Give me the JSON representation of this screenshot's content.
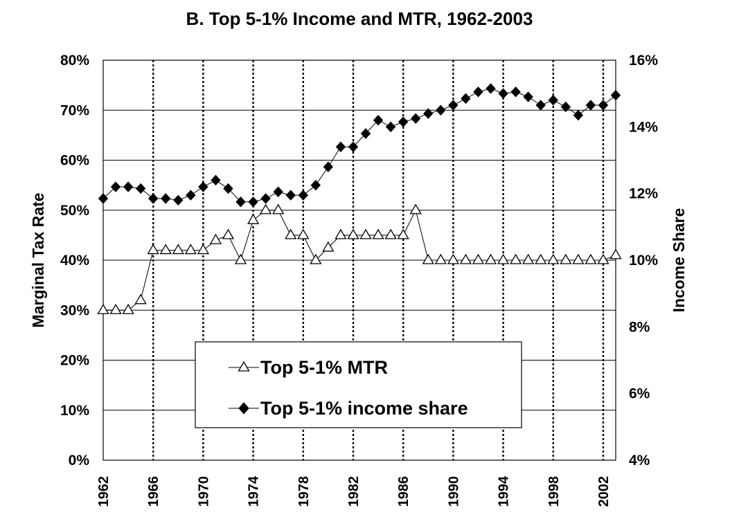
{
  "chart_data": {
    "type": "line",
    "title": "B. Top 5-1% Income and MTR, 1962-2003",
    "ylabel_left": "Marginal Tax Rate",
    "ylabel_right": "Income Share",
    "ylim_left": [
      0,
      80
    ],
    "ylim_right": [
      4,
      16
    ],
    "xlim": [
      1962,
      2003
    ],
    "x_ticks": [
      1962,
      1966,
      1970,
      1974,
      1978,
      1982,
      1986,
      1990,
      1994,
      1998,
      2002
    ],
    "x_tick_labels": [
      "1962",
      "1966",
      "1970",
      "1974",
      "1978",
      "1982",
      "1986",
      "1990",
      "1994",
      "1998",
      "2002"
    ],
    "y_left_ticks": [
      "0%",
      "10%",
      "20%",
      "30%",
      "40%",
      "50%",
      "60%",
      "70%",
      "80%"
    ],
    "y_right_ticks": [
      "4%",
      "6%",
      "8%",
      "10%",
      "12%",
      "14%",
      "16%"
    ],
    "grid": "horizontal solid lines; vertical dotted lines at x ticks",
    "legend_position": "lower-center",
    "x": [
      1962,
      1963,
      1964,
      1965,
      1966,
      1967,
      1968,
      1969,
      1970,
      1971,
      1972,
      1973,
      1974,
      1975,
      1976,
      1977,
      1978,
      1979,
      1980,
      1981,
      1982,
      1983,
      1984,
      1985,
      1986,
      1987,
      1988,
      1989,
      1990,
      1991,
      1992,
      1993,
      1994,
      1995,
      1996,
      1997,
      1998,
      1999,
      2000,
      2001,
      2002,
      2003
    ],
    "series": [
      {
        "name": "Top 5-1% MTR",
        "axis": "left",
        "marker": "open-triangle",
        "values": [
          30,
          30,
          30,
          32,
          42,
          42,
          42,
          42,
          42,
          44,
          45,
          40,
          48,
          50,
          50,
          45,
          45,
          40,
          42.5,
          45,
          45,
          45,
          45,
          45,
          45,
          50,
          40,
          40,
          40,
          40,
          40,
          40,
          40,
          40,
          40,
          40,
          40,
          40,
          40,
          40,
          40,
          41
        ]
      },
      {
        "name": "Top 5-1% income share",
        "axis": "right",
        "marker": "filled-diamond",
        "values": [
          11.85,
          12.2,
          12.2,
          12.15,
          11.85,
          11.85,
          11.8,
          11.95,
          12.2,
          12.4,
          12.15,
          11.75,
          11.75,
          11.85,
          12.05,
          11.95,
          11.95,
          12.25,
          12.8,
          13.4,
          13.4,
          13.8,
          14.2,
          14.0,
          14.15,
          14.25,
          14.4,
          14.5,
          14.65,
          14.85,
          15.05,
          15.15,
          15.0,
          15.05,
          14.9,
          14.65,
          14.8,
          14.6,
          14.35,
          14.65,
          14.65,
          14.95
        ]
      }
    ]
  },
  "legend": {
    "mtr_label": "Top 5-1% MTR",
    "share_label": "Top 5-1% income share"
  }
}
